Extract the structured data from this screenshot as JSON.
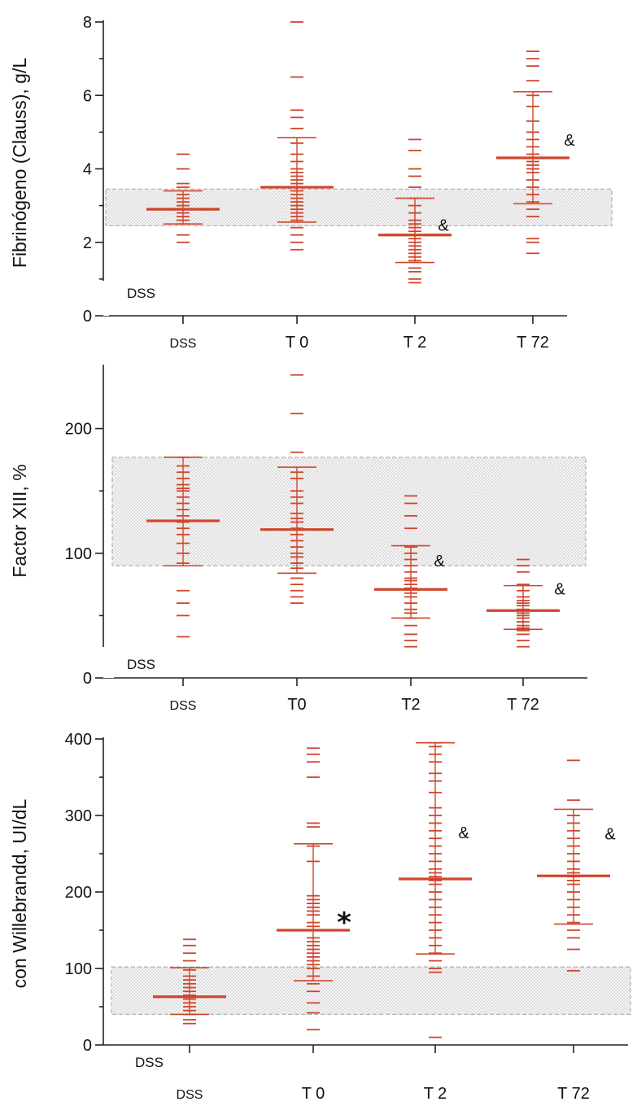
{
  "colors": {
    "accent": "#d0452b",
    "axis": "#222222",
    "band_fill": "#d9d9d9",
    "band_stroke": "#b0b0b0"
  },
  "chart_data": [
    {
      "type": "scatter",
      "ylabel": "Fibrinógeno (Clauss), g/L",
      "ylim": [
        0,
        8
      ],
      "yticks": [
        0,
        2,
        4,
        6,
        8
      ],
      "categories": [
        "DSS",
        "T 0",
        "T 2",
        "T 72"
      ],
      "reference_band": [
        2.45,
        3.45
      ],
      "band_label": "DSS",
      "annotations": [
        "",
        "",
        "&",
        "&"
      ],
      "groups": [
        {
          "name": "DSS",
          "mean": 2.9,
          "low": 2.5,
          "high": 3.4,
          "points": [
            2.0,
            2.2,
            2.5,
            2.6,
            2.7,
            2.8,
            2.9,
            3.0,
            3.1,
            3.2,
            3.3,
            3.5,
            3.6,
            4.0,
            4.4
          ]
        },
        {
          "name": "T 0",
          "mean": 3.5,
          "low": 2.55,
          "high": 4.85,
          "points": [
            1.8,
            2.0,
            2.2,
            2.4,
            2.6,
            2.7,
            2.8,
            2.9,
            3.0,
            3.1,
            3.2,
            3.3,
            3.4,
            3.5,
            3.6,
            3.7,
            3.8,
            3.9,
            4.0,
            4.2,
            4.4,
            4.7,
            5.1,
            5.4,
            5.6,
            6.5,
            8.0
          ]
        },
        {
          "name": "T 2",
          "mean": 2.2,
          "low": 1.45,
          "high": 3.2,
          "points": [
            0.9,
            1.0,
            1.2,
            1.3,
            1.5,
            1.6,
            1.7,
            1.8,
            1.9,
            2.0,
            2.1,
            2.2,
            2.3,
            2.4,
            2.5,
            2.6,
            2.8,
            3.0,
            3.2,
            3.5,
            3.8,
            4.0,
            4.5,
            4.8
          ]
        },
        {
          "name": "T 72",
          "mean": 4.3,
          "low": 3.05,
          "high": 6.1,
          "points": [
            1.7,
            2.0,
            2.1,
            2.7,
            2.9,
            3.1,
            3.3,
            3.5,
            3.7,
            3.9,
            4.0,
            4.1,
            4.2,
            4.4,
            4.6,
            4.8,
            5.0,
            5.3,
            5.7,
            6.0,
            6.4,
            6.8,
            7.0,
            7.2
          ]
        }
      ]
    },
    {
      "type": "scatter",
      "ylabel": "Factor XIII, %",
      "ylim": [
        0,
        250
      ],
      "yticks": [
        0,
        100,
        200
      ],
      "categories": [
        "DSS",
        "T0",
        "T2",
        "T 72"
      ],
      "reference_band": [
        90,
        177
      ],
      "band_label": "DSS",
      "annotations": [
        "",
        "",
        "&",
        "&"
      ],
      "groups": [
        {
          "name": "DSS",
          "mean": 126,
          "low": 90,
          "high": 177,
          "points": [
            33,
            50,
            60,
            70,
            92,
            100,
            108,
            115,
            120,
            125,
            130,
            135,
            140,
            145,
            150,
            152,
            155,
            160,
            165,
            170,
            177
          ]
        },
        {
          "name": "T0",
          "mean": 119,
          "low": 84,
          "high": 169,
          "points": [
            60,
            65,
            70,
            75,
            80,
            88,
            92,
            97,
            100,
            105,
            110,
            115,
            120,
            125,
            128,
            132,
            140,
            145,
            150,
            160,
            165,
            181,
            212,
            243
          ]
        },
        {
          "name": "T2",
          "mean": 71,
          "low": 48,
          "high": 106,
          "points": [
            25,
            30,
            35,
            42,
            48,
            52,
            55,
            60,
            65,
            68,
            72,
            75,
            78,
            80,
            85,
            90,
            95,
            100,
            105,
            120,
            130,
            140,
            146
          ]
        },
        {
          "name": "T 72",
          "mean": 54,
          "low": 39,
          "high": 74,
          "points": [
            25,
            30,
            35,
            38,
            40,
            42,
            45,
            48,
            50,
            52,
            55,
            58,
            60,
            62,
            65,
            70,
            75,
            85,
            90,
            95
          ]
        }
      ]
    },
    {
      "type": "scatter",
      "ylabel": "con Willebrandd, UI/dL",
      "ylim": [
        0,
        400
      ],
      "yticks": [
        0,
        100,
        200,
        300,
        400
      ],
      "categories": [
        "DSS",
        "T 0",
        "T 2",
        "T 72"
      ],
      "reference_band": [
        40,
        102
      ],
      "band_label": "DSS",
      "annotations": [
        "",
        "*",
        "&",
        "&"
      ],
      "groups": [
        {
          "name": "DSS",
          "mean": 63,
          "low": 40,
          "high": 101,
          "points": [
            28,
            33,
            40,
            45,
            50,
            55,
            60,
            65,
            70,
            75,
            80,
            85,
            90,
            98,
            110,
            120,
            130,
            138
          ]
        },
        {
          "name": "T 0",
          "mean": 150,
          "low": 84,
          "high": 263,
          "points": [
            20,
            42,
            55,
            70,
            80,
            90,
            100,
            105,
            110,
            115,
            120,
            125,
            130,
            135,
            140,
            150,
            155,
            160,
            170,
            175,
            180,
            185,
            190,
            195,
            240,
            260,
            285,
            290,
            350,
            370,
            380,
            388
          ]
        },
        {
          "name": "T 2",
          "mean": 217,
          "low": 119,
          "high": 395,
          "points": [
            10,
            95,
            100,
            110,
            120,
            130,
            140,
            150,
            160,
            170,
            180,
            190,
            200,
            210,
            215,
            220,
            225,
            230,
            240,
            250,
            260,
            270,
            280,
            290,
            300,
            310,
            330,
            345,
            355,
            370,
            380,
            390,
            395
          ]
        },
        {
          "name": "T 72",
          "mean": 221,
          "low": 158,
          "high": 308,
          "points": [
            97,
            125,
            140,
            150,
            160,
            170,
            180,
            190,
            200,
            210,
            215,
            220,
            225,
            230,
            240,
            250,
            260,
            270,
            280,
            290,
            300,
            320,
            372
          ]
        }
      ]
    }
  ]
}
